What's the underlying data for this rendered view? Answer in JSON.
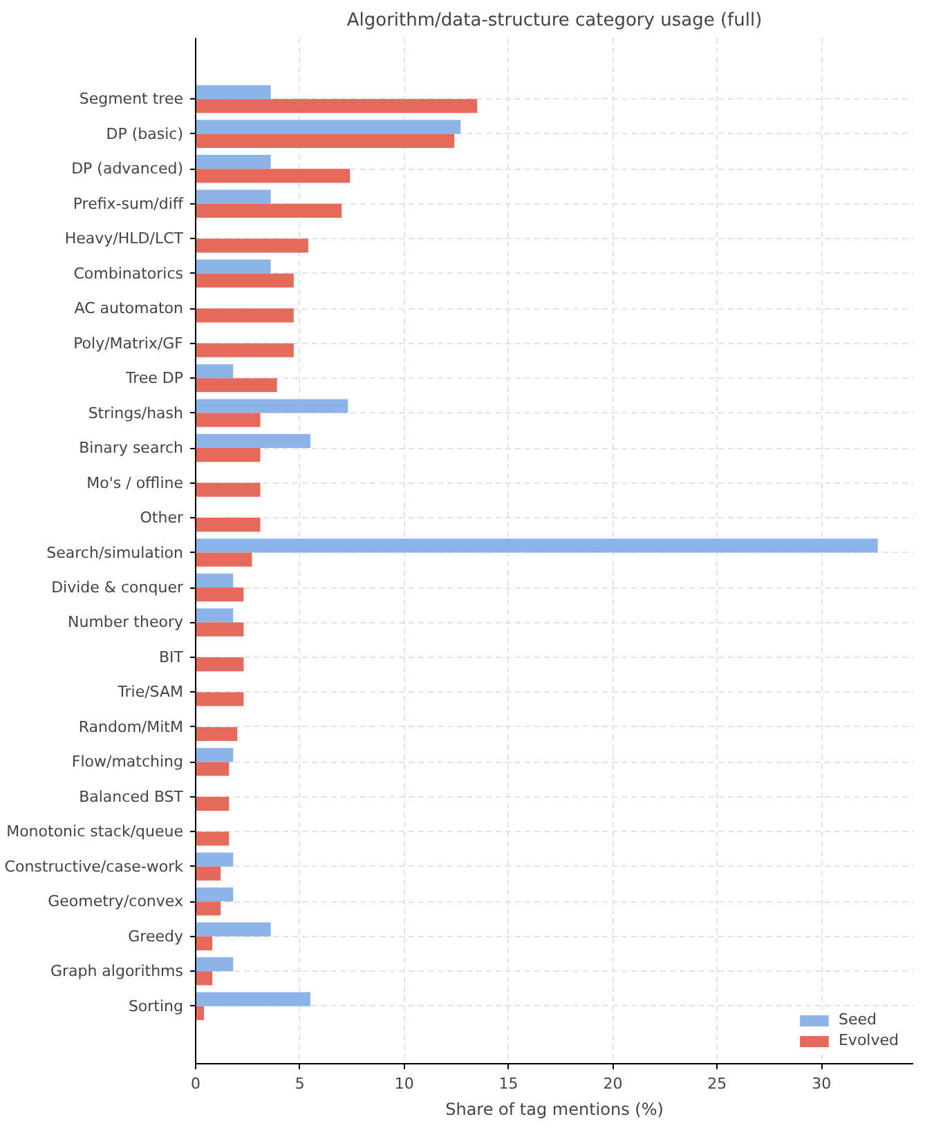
{
  "chart_data": {
    "type": "bar",
    "orientation": "horizontal",
    "title": "Algorithm/data-structure category usage (full)",
    "xlabel": "Share of tag mentions (%)",
    "categories": [
      "Segment tree",
      "DP (basic)",
      "DP (advanced)",
      "Prefix-sum/diff",
      "Heavy/HLD/LCT",
      "Combinatorics",
      "AC automaton",
      "Poly/Matrix/GF",
      "Tree DP",
      "Strings/hash",
      "Binary search",
      "Mo's / offline",
      "Other",
      "Search/simulation",
      "Divide & conquer",
      "Number theory",
      "BIT",
      "Trie/SAM",
      "Random/MitM",
      "Flow/matching",
      "Balanced BST",
      "Monotonic stack/queue",
      "Constructive/case-work",
      "Geometry/convex",
      "Greedy",
      "Graph algorithms",
      "Sorting"
    ],
    "series": [
      {
        "name": "Seed",
        "color": "#8db4e8",
        "values": [
          3.6,
          12.7,
          3.6,
          3.6,
          0,
          3.6,
          0,
          0,
          1.8,
          7.3,
          5.5,
          0,
          0,
          32.7,
          1.8,
          1.8,
          0,
          0,
          0,
          1.8,
          0,
          0,
          1.8,
          1.8,
          3.6,
          1.8,
          5.5
        ]
      },
      {
        "name": "Evolved",
        "color": "#e66a5c",
        "values": [
          13.5,
          12.4,
          7.4,
          7.0,
          5.4,
          4.7,
          4.7,
          4.7,
          3.9,
          3.1,
          3.1,
          3.1,
          3.1,
          2.7,
          2.3,
          2.3,
          2.3,
          2.3,
          2.0,
          1.6,
          1.6,
          1.6,
          1.2,
          1.2,
          0.8,
          0.8,
          0.4
        ]
      }
    ],
    "xlim": [
      0,
      34.4
    ],
    "xticks": [
      0,
      5,
      10,
      15,
      20,
      25,
      30
    ],
    "grid": true,
    "legend": "bottom right"
  }
}
